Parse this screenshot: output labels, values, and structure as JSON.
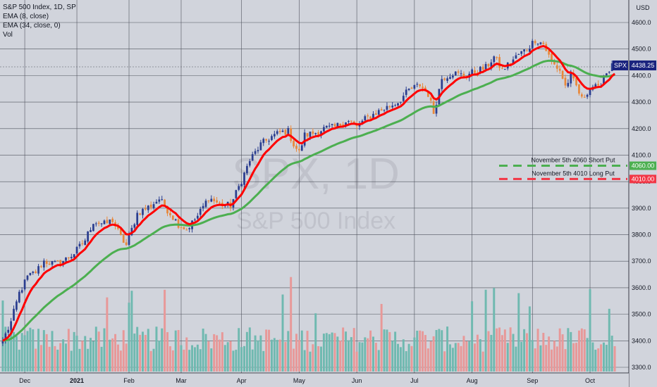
{
  "legend": {
    "title": "S&P 500 Index, 1D, SP",
    "ema_fast": "EMA (8, close)",
    "ema_slow": "EMA (34, close, 0)",
    "vol": "Vol"
  },
  "watermark": {
    "line1": "SPX, 1D",
    "line2": "S&P 500 Index"
  },
  "chart_data": {
    "type": "candlestick",
    "currency": "USD",
    "ylim": [
      3290,
      4650
    ],
    "y_ticks": [
      3300,
      3400,
      3500,
      3600,
      3700,
      3800,
      3900,
      4000,
      4100,
      4200,
      4300,
      4400,
      4500,
      4600
    ],
    "x_ticks": [
      {
        "label": "Dec",
        "i": 8
      },
      {
        "label": "2021",
        "i": 27
      },
      {
        "label": "Feb",
        "i": 46
      },
      {
        "label": "Mar",
        "i": 65
      },
      {
        "label": "Apr",
        "i": 87
      },
      {
        "label": "May",
        "i": 108
      },
      {
        "label": "Jun",
        "i": 129
      },
      {
        "label": "Jul",
        "i": 150
      },
      {
        "label": "Aug",
        "i": 171
      },
      {
        "label": "Sep",
        "i": 193
      },
      {
        "label": "Oct",
        "i": 214
      }
    ],
    "n_bars": 224,
    "close_keypoints": [
      [
        0,
        3400
      ],
      [
        3,
        3470
      ],
      [
        6,
        3580
      ],
      [
        9,
        3640
      ],
      [
        12,
        3660
      ],
      [
        15,
        3700
      ],
      [
        19,
        3690
      ],
      [
        22,
        3700
      ],
      [
        26,
        3730
      ],
      [
        30,
        3780
      ],
      [
        33,
        3850
      ],
      [
        37,
        3840
      ],
      [
        40,
        3855
      ],
      [
        43,
        3790
      ],
      [
        45,
        3760
      ],
      [
        49,
        3880
      ],
      [
        54,
        3910
      ],
      [
        57,
        3935
      ],
      [
        61,
        3880
      ],
      [
        64,
        3840
      ],
      [
        67,
        3820
      ],
      [
        71,
        3870
      ],
      [
        75,
        3940
      ],
      [
        79,
        3915
      ],
      [
        83,
        3910
      ],
      [
        86,
        3980
      ],
      [
        90,
        4080
      ],
      [
        94,
        4140
      ],
      [
        98,
        4170
      ],
      [
        101,
        4185
      ],
      [
        104,
        4190
      ],
      [
        106,
        4140
      ],
      [
        108,
        4110
      ],
      [
        110,
        4175
      ],
      [
        114,
        4185
      ],
      [
        117,
        4200
      ],
      [
        121,
        4205
      ],
      [
        125,
        4230
      ],
      [
        127,
        4225
      ],
      [
        129,
        4205
      ],
      [
        132,
        4235
      ],
      [
        136,
        4260
      ],
      [
        140,
        4280
      ],
      [
        144,
        4300
      ],
      [
        148,
        4345
      ],
      [
        152,
        4365
      ],
      [
        155,
        4330
      ],
      [
        157,
        4260
      ],
      [
        160,
        4390
      ],
      [
        164,
        4410
      ],
      [
        168,
        4400
      ],
      [
        172,
        4415
      ],
      [
        176,
        4430
      ],
      [
        179,
        4470
      ],
      [
        182,
        4420
      ],
      [
        185,
        4450
      ],
      [
        188,
        4480
      ],
      [
        191,
        4500
      ],
      [
        194,
        4535
      ],
      [
        197,
        4520
      ],
      [
        200,
        4450
      ],
      [
        203,
        4420
      ],
      [
        205,
        4360
      ],
      [
        207,
        4395
      ],
      [
        209,
        4360
      ],
      [
        211,
        4310
      ],
      [
        213,
        4340
      ],
      [
        215,
        4360
      ],
      [
        217,
        4350
      ],
      [
        219,
        4400
      ],
      [
        222,
        4435
      ],
      [
        223,
        4438.25
      ]
    ],
    "last_price": "4438.25",
    "last_label": "SPX",
    "levels": [
      {
        "label": "November 5th 4060 Short Put",
        "value": 4060,
        "value_text": "4060.00",
        "color": "#4caf50"
      },
      {
        "label": "November 5th 4010 Long Put",
        "value": 4010,
        "value_text": "4010.00",
        "color": "#f23645"
      }
    ],
    "colors": {
      "up": "#2a3d8f",
      "down": "#e8873a",
      "ema_fast": "#ff0000",
      "ema_slow": "#4caf50",
      "vol_up": "#6fb9b0",
      "vol_down": "#e89898",
      "price_tag": "#1a237e",
      "grid": "#50535e"
    }
  }
}
